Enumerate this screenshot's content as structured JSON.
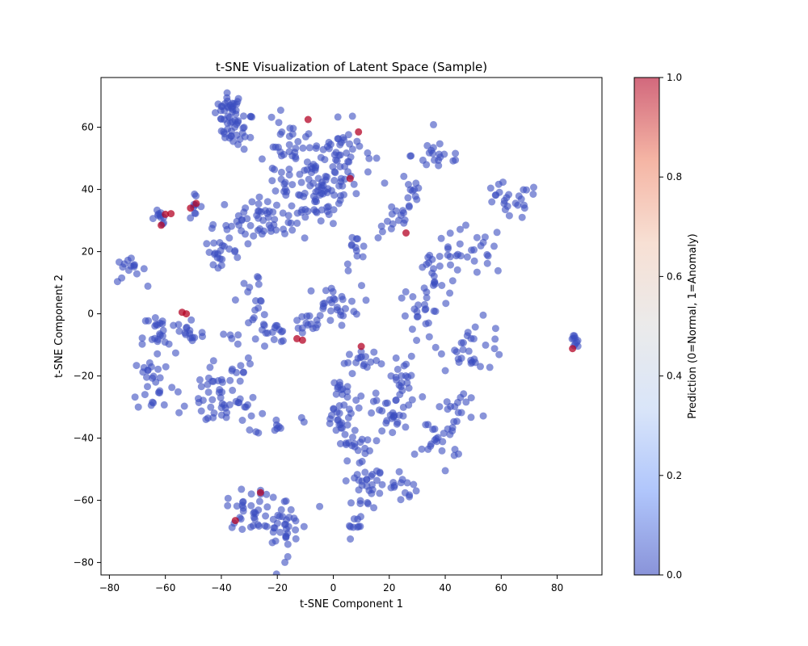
{
  "chart_data": {
    "type": "scatter",
    "title": "t-SNE Visualization of Latent Space (Sample)",
    "xlabel": "t-SNE Component 1",
    "ylabel": "t-SNE Component 2",
    "xlim": [
      -83,
      96
    ],
    "ylim": [
      -84,
      76
    ],
    "xticks": [
      -80,
      -60,
      -40,
      -20,
      0,
      20,
      40,
      60,
      80
    ],
    "yticks": [
      -80,
      -60,
      -40,
      -20,
      0,
      20,
      40,
      60
    ],
    "grid": false,
    "marker_alpha": 0.6,
    "colormap": "coolwarm",
    "colormap_stops": [
      "#3b4cc0",
      "#7b9ff9",
      "#c0d4f5",
      "#dddddd",
      "#f2cbb7",
      "#ee8468",
      "#b40426"
    ],
    "colorbar": {
      "label": "Prediction (0=Normal, 1=Anomaly)",
      "range": [
        0,
        1
      ],
      "ticks": [
        "0.0",
        "0.2",
        "0.4",
        "0.6",
        "0.8",
        "1.0"
      ]
    },
    "clusters": [
      {
        "x": -37,
        "y": 66,
        "sx": 2.5,
        "sy": 2.5,
        "n": 30
      },
      {
        "x": -34,
        "y": 59,
        "sx": 3,
        "sy": 3,
        "n": 30
      },
      {
        "x": -15,
        "y": 48,
        "sx": 6,
        "sy": 7,
        "n": 50
      },
      {
        "x": -5,
        "y": 40,
        "sx": 7,
        "sy": 6,
        "n": 60
      },
      {
        "x": 2,
        "y": 52,
        "sx": 6,
        "sy": 5,
        "n": 45
      },
      {
        "x": -25,
        "y": 30,
        "sx": 9,
        "sy": 3.5,
        "n": 60
      },
      {
        "x": -40,
        "y": 20,
        "sx": 3,
        "sy": 2,
        "n": 20
      },
      {
        "x": -62,
        "y": 31,
        "sx": 1.5,
        "sy": 1.2,
        "n": 10
      },
      {
        "x": -50,
        "y": 35,
        "sx": 1.5,
        "sy": 1.5,
        "n": 8
      },
      {
        "x": -73,
        "y": 14,
        "sx": 3,
        "sy": 2,
        "n": 15
      },
      {
        "x": 22,
        "y": 30,
        "sx": 3,
        "sy": 3,
        "n": 15
      },
      {
        "x": 28,
        "y": 40,
        "sx": 2,
        "sy": 5,
        "n": 12
      },
      {
        "x": 38,
        "y": 51,
        "sx": 5,
        "sy": 3,
        "n": 20
      },
      {
        "x": 62,
        "y": 36,
        "sx": 6,
        "sy": 3,
        "n": 25
      },
      {
        "x": 50,
        "y": 20,
        "sx": 6,
        "sy": 4,
        "n": 25
      },
      {
        "x": 37,
        "y": 12,
        "sx": 5,
        "sy": 5,
        "n": 25
      },
      {
        "x": 33,
        "y": 0,
        "sx": 3,
        "sy": 5,
        "n": 20
      },
      {
        "x": 50,
        "y": -10,
        "sx": 6,
        "sy": 4,
        "n": 30
      },
      {
        "x": 8,
        "y": 20,
        "sx": 2,
        "sy": 3,
        "n": 12
      },
      {
        "x": -28,
        "y": 4,
        "sx": 3,
        "sy": 5,
        "n": 20
      },
      {
        "x": -22,
        "y": -7,
        "sx": 3,
        "sy": 3,
        "n": 15
      },
      {
        "x": 0,
        "y": 3,
        "sx": 5,
        "sy": 3,
        "n": 30
      },
      {
        "x": -10,
        "y": -4,
        "sx": 3,
        "sy": 2,
        "n": 12
      },
      {
        "x": -62,
        "y": -8,
        "sx": 3,
        "sy": 5,
        "n": 25
      },
      {
        "x": -52,
        "y": -6,
        "sx": 3,
        "sy": 3,
        "n": 15
      },
      {
        "x": -64,
        "y": -22,
        "sx": 4,
        "sy": 5,
        "n": 25
      },
      {
        "x": -42,
        "y": -22,
        "sx": 5,
        "sy": 4,
        "n": 20
      },
      {
        "x": -40,
        "y": -30,
        "sx": 7,
        "sy": 3,
        "n": 30
      },
      {
        "x": -20,
        "y": -35,
        "sx": 4,
        "sy": 2,
        "n": 12
      },
      {
        "x": -34,
        "y": -12,
        "sx": 2,
        "sy": 5,
        "n": 12
      },
      {
        "x": 2,
        "y": -30,
        "sx": 3,
        "sy": 6,
        "n": 35
      },
      {
        "x": 6,
        "y": -42,
        "sx": 4,
        "sy": 3,
        "n": 20
      },
      {
        "x": 10,
        "y": -55,
        "sx": 3,
        "sy": 4,
        "n": 20
      },
      {
        "x": 20,
        "y": -55,
        "sx": 5,
        "sy": 3,
        "n": 25
      },
      {
        "x": 7,
        "y": -68,
        "sx": 2,
        "sy": 2,
        "n": 10
      },
      {
        "x": 20,
        "y": -32,
        "sx": 5,
        "sy": 4,
        "n": 30
      },
      {
        "x": 12,
        "y": -16,
        "sx": 3,
        "sy": 2,
        "n": 15
      },
      {
        "x": 25,
        "y": -22,
        "sx": 3,
        "sy": 5,
        "n": 20
      },
      {
        "x": 38,
        "y": -40,
        "sx": 4,
        "sy": 4,
        "n": 25
      },
      {
        "x": 45,
        "y": -30,
        "sx": 4,
        "sy": 3,
        "n": 15
      },
      {
        "x": -30,
        "y": -63,
        "sx": 4,
        "sy": 3,
        "n": 30
      },
      {
        "x": -18,
        "y": -68,
        "sx": 5,
        "sy": 5,
        "n": 40
      },
      {
        "x": 86,
        "y": -9,
        "sx": 0.8,
        "sy": 1.2,
        "n": 10
      }
    ],
    "anomalies": [
      {
        "x": -9,
        "y": 62.5
      },
      {
        "x": 9,
        "y": 58.5
      },
      {
        "x": 6,
        "y": 43.5
      },
      {
        "x": -49,
        "y": 35.5
      },
      {
        "x": -51,
        "y": 34
      },
      {
        "x": -58,
        "y": 32.2
      },
      {
        "x": -60,
        "y": 32
      },
      {
        "x": -61.5,
        "y": 28.5
      },
      {
        "x": 26,
        "y": 26
      },
      {
        "x": -54,
        "y": 0.5
      },
      {
        "x": -52.5,
        "y": 0
      },
      {
        "x": -13,
        "y": -8
      },
      {
        "x": -11,
        "y": -8.5
      },
      {
        "x": 10,
        "y": -10.5
      },
      {
        "x": 85.5,
        "y": -11.2
      },
      {
        "x": -26,
        "y": -57.5
      },
      {
        "x": -35,
        "y": -66.5
      }
    ]
  }
}
